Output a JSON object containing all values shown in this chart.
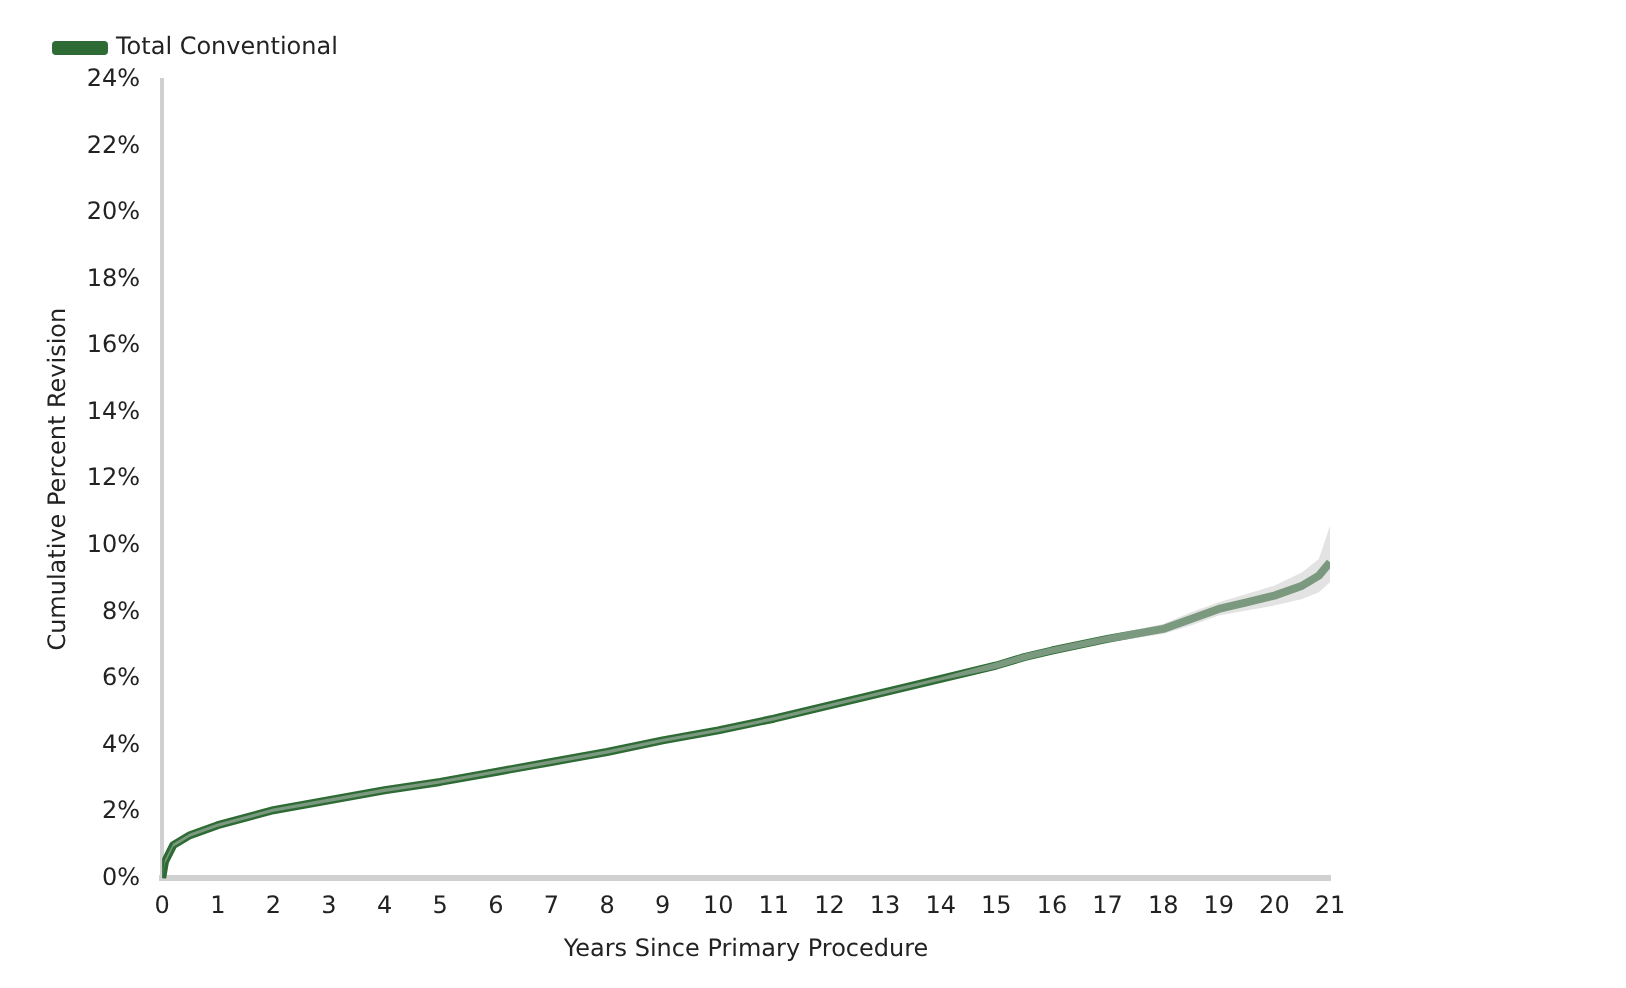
{
  "chart_data": {
    "type": "line",
    "xlabel": "Years Since Primary Procedure",
    "ylabel": "Cumulative Percent Revision",
    "x": [
      0,
      0.05,
      0.2,
      0.5,
      1,
      2,
      3,
      4,
      5,
      6,
      7,
      8,
      9,
      10,
      11,
      12,
      13,
      14,
      15,
      15.5,
      16,
      17,
      18,
      18.5,
      19,
      19.5,
      20,
      20.5,
      20.8,
      21
    ],
    "series": [
      {
        "name": "Total Conventional",
        "color": "#2e6b35",
        "values": [
          0,
          0.5,
          1.0,
          1.3,
          1.6,
          2.05,
          2.35,
          2.65,
          2.9,
          3.2,
          3.5,
          3.8,
          4.15,
          4.45,
          4.8,
          5.2,
          5.6,
          6.0,
          6.4,
          6.65,
          6.85,
          7.2,
          7.5,
          7.8,
          8.1,
          8.3,
          8.5,
          8.8,
          9.1,
          9.5
        ],
        "lower": [
          0,
          0.45,
          0.95,
          1.25,
          1.55,
          2.0,
          2.3,
          2.6,
          2.85,
          3.15,
          3.45,
          3.75,
          4.1,
          4.4,
          4.75,
          5.15,
          5.55,
          5.95,
          6.3,
          6.55,
          6.75,
          7.1,
          7.35,
          7.6,
          7.9,
          8.05,
          8.2,
          8.4,
          8.6,
          8.9
        ],
        "upper": [
          0,
          0.55,
          1.05,
          1.35,
          1.65,
          2.1,
          2.4,
          2.7,
          2.95,
          3.25,
          3.55,
          3.85,
          4.2,
          4.5,
          4.85,
          5.25,
          5.65,
          6.05,
          6.5,
          6.75,
          6.95,
          7.3,
          7.65,
          8.0,
          8.3,
          8.55,
          8.8,
          9.2,
          9.6,
          10.6
        ]
      }
    ],
    "xlim": [
      0,
      21
    ],
    "xticks": [
      0,
      1,
      2,
      3,
      4,
      5,
      6,
      7,
      8,
      9,
      10,
      11,
      12,
      13,
      14,
      15,
      16,
      17,
      18,
      19,
      20,
      21
    ],
    "ylim": [
      0,
      24
    ],
    "yticks": [
      {
        "value": 0,
        "label": "0%"
      },
      {
        "value": 2,
        "label": "2%"
      },
      {
        "value": 4,
        "label": "4%"
      },
      {
        "value": 6,
        "label": "6%"
      },
      {
        "value": 8,
        "label": "8%"
      },
      {
        "value": 10,
        "label": "10%"
      },
      {
        "value": 12,
        "label": "12%"
      },
      {
        "value": 14,
        "label": "14%"
      },
      {
        "value": 16,
        "label": "16%"
      },
      {
        "value": 18,
        "label": "18%"
      },
      {
        "value": 20,
        "label": "20%"
      },
      {
        "value": 22,
        "label": "22%"
      },
      {
        "value": 24,
        "label": "24%"
      }
    ],
    "grid": false,
    "legend": "top left"
  }
}
